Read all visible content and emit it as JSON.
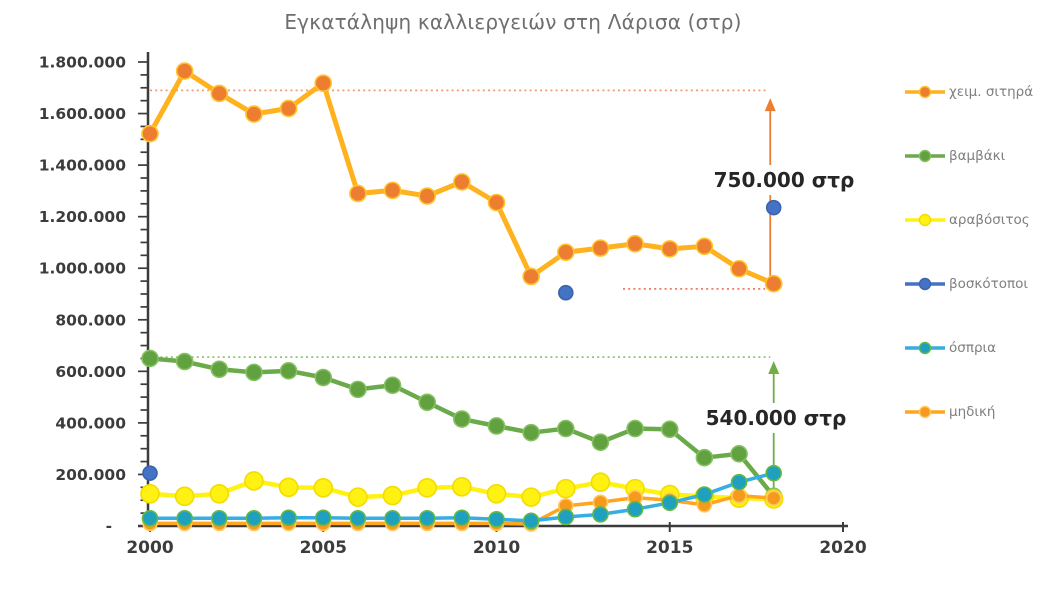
{
  "title": "Εγκατάληψη καλλιεργειών στη Λάρισα (στρ)",
  "chart_data": {
    "type": "line",
    "title": "Εγκατάληψη καλλιεργειών στη Λάρισα (στρ)",
    "grid": false,
    "legend_position": "right",
    "x": [
      2000,
      2001,
      2002,
      2003,
      2004,
      2005,
      2006,
      2007,
      2008,
      2009,
      2010,
      2011,
      2012,
      2013,
      2014,
      2015,
      2016,
      2017,
      2018
    ],
    "x_axis": {
      "range": [
        2000,
        2020
      ],
      "ticks": [
        2000,
        2005,
        2010,
        2015,
        2020
      ]
    },
    "y_axis": {
      "range": [
        0,
        1800000
      ],
      "minor_tick_step": 50000,
      "ticks": [
        {
          "value": 1800000,
          "label": "1.800.000"
        },
        {
          "value": 1600000,
          "label": "1.600.000"
        },
        {
          "value": 1400000,
          "label": "1.400.000"
        },
        {
          "value": 1200000,
          "label": "1.200.000"
        },
        {
          "value": 1000000,
          "label": "1.000.000"
        },
        {
          "value": 800000,
          "label": "800.000"
        },
        {
          "value": 600000,
          "label": "600.000"
        },
        {
          "value": 400000,
          "label": "400.000"
        },
        {
          "value": 200000,
          "label": "200.000"
        },
        {
          "value": 0,
          "label": "-"
        }
      ]
    },
    "series": [
      {
        "name": "χειμ. σιτηρά",
        "type": "line",
        "color": "#FFB11E",
        "marker_color": "#ED7D31",
        "marker_edge": "#FFC32B",
        "line_width": 5,
        "marker_radius": 8,
        "values": [
          1522000,
          1765000,
          1678000,
          1598000,
          1620000,
          1718000,
          1290000,
          1302000,
          1280000,
          1335000,
          1255000,
          968000,
          1062000,
          1078000,
          1095000,
          1075000,
          1085000,
          998000,
          940000
        ]
      },
      {
        "name": "βαμβάκι",
        "type": "line",
        "color": "#6AAA4B",
        "marker_color": "#61A13F",
        "marker_edge": "#85C061",
        "line_width": 4.5,
        "marker_radius": 8,
        "values": [
          650000,
          638000,
          608000,
          596000,
          602000,
          576000,
          530000,
          546000,
          480000,
          415000,
          388000,
          362000,
          378000,
          325000,
          378000,
          375000,
          265000,
          280000,
          115000
        ]
      },
      {
        "name": "αραβόσιτος",
        "type": "line",
        "color": "#FFF112",
        "marker_color": "#FFF112",
        "marker_edge": "#F3DC00",
        "line_width": 4.5,
        "marker_radius": 9,
        "values": [
          125000,
          115000,
          125000,
          175000,
          150000,
          148000,
          112000,
          118000,
          148000,
          152000,
          125000,
          112000,
          145000,
          170000,
          145000,
          122000,
          115000,
          108000,
          105000
        ]
      },
      {
        "name": "βοσκότοποι",
        "type": "scatter",
        "color": "#4472C4",
        "marker_color": "#4472C4",
        "marker_edge": "#3B64AE",
        "marker_radius": 7,
        "points": [
          [
            2000,
            205000
          ],
          [
            2012,
            905000
          ],
          [
            2018,
            1235000
          ]
        ]
      },
      {
        "name": "όσπρια",
        "type": "line",
        "color": "#35AEE3",
        "marker_color": "#1FA0BE",
        "marker_edge": "#62B944",
        "line_width": 3.5,
        "marker_radius": 7.5,
        "values": [
          30000,
          30000,
          30000,
          30000,
          32000,
          32000,
          30000,
          30000,
          30000,
          32000,
          26000,
          20000,
          35000,
          45000,
          65000,
          90000,
          122000,
          170000,
          205000
        ]
      },
      {
        "name": "μηδική",
        "type": "line",
        "color": "#FFA51F",
        "marker_color": "#F69A1E",
        "marker_edge": "#FFC95E",
        "line_width": 3.5,
        "marker_radius": 7,
        "values": [
          10000,
          10000,
          10000,
          10000,
          10000,
          10000,
          10000,
          10000,
          10000,
          10000,
          10000,
          8000,
          78000,
          92000,
          110000,
          100000,
          82000,
          118000,
          108000
        ]
      }
    ],
    "reference_lines": [
      {
        "value": 1690000,
        "from": 2000,
        "to": 2017.8,
        "color": "#F09B78"
      },
      {
        "value": 920000,
        "from": 2013.65,
        "to": 2017.75,
        "color": "#E97D5F"
      },
      {
        "value": 655000,
        "from": 2000,
        "to": 2017.9,
        "color": "#8FC470"
      }
    ],
    "arrows": [
      {
        "x_year": 2017.9,
        "from": 945000,
        "to": 1660000,
        "color": "#ED7D31"
      },
      {
        "x_year": 2018.0,
        "from": 125000,
        "to": 640000,
        "color": "#70AD47"
      }
    ],
    "annotations": [
      {
        "text": "750.000 στρ"
      },
      {
        "text": "540.000 στρ"
      }
    ]
  }
}
